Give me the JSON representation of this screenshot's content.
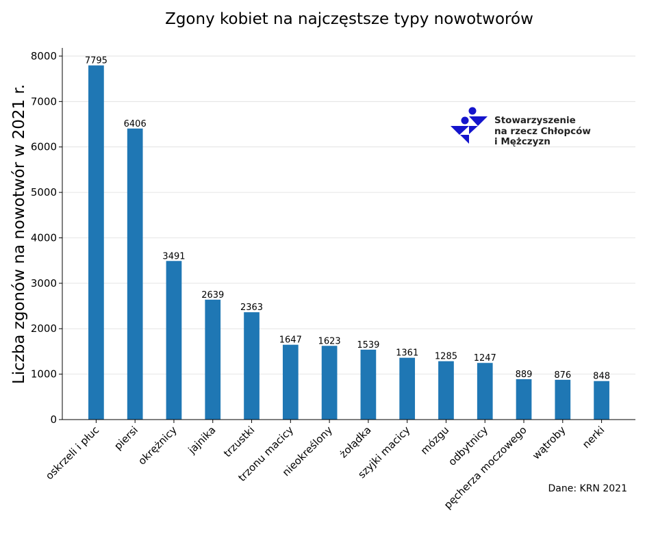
{
  "chart_data": {
    "type": "bar",
    "title": "Zgony kobiet na najczęstsze typy nowotworów",
    "xlabel": "",
    "ylabel": "Liczba zgonów na nowotwór w 2021 r.",
    "categories": [
      "oskrzeli i płuc",
      "piersi",
      "okrężnicy",
      "jajnika",
      "trzustki",
      "trzonu macicy",
      "nieokreślony",
      "żołądka",
      "szyjki macicy",
      "mózgu",
      "odbytnicy",
      "pęcherza moczowego",
      "wątroby",
      "nerki"
    ],
    "values": [
      7795,
      6406,
      3491,
      2639,
      2363,
      1647,
      1623,
      1539,
      1361,
      1285,
      1247,
      889,
      876,
      848
    ],
    "ylim": [
      0,
      8180
    ],
    "yticks": [
      0,
      1000,
      2000,
      3000,
      4000,
      5000,
      6000,
      7000,
      8000
    ],
    "grid": "horizontal",
    "bar_color": "#1f77b4",
    "annotation": "Dane: KRN 2021"
  },
  "logo": {
    "text_lines": [
      "Stowarzyszenie",
      "na rzecz Chłopców",
      "i Mężczyzn"
    ],
    "color": "#1414cc"
  }
}
